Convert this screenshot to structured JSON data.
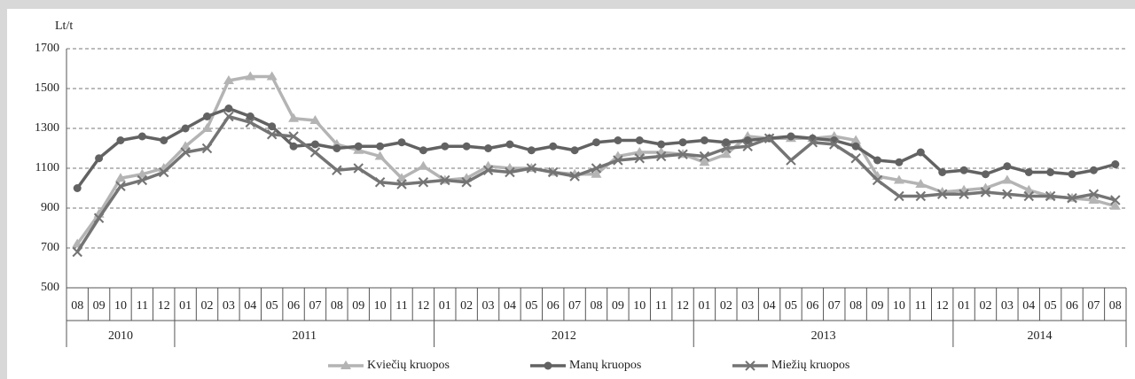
{
  "chart_data": {
    "type": "line",
    "y_label": "Lt/t",
    "categories": [
      "08",
      "09",
      "10",
      "11",
      "12",
      "01",
      "02",
      "03",
      "04",
      "05",
      "06",
      "07",
      "08",
      "09",
      "10",
      "11",
      "12",
      "01",
      "02",
      "03",
      "04",
      "05",
      "06",
      "07",
      "08",
      "09",
      "10",
      "11",
      "12",
      "01",
      "02",
      "03",
      "04",
      "05",
      "06",
      "07",
      "08",
      "09",
      "10",
      "11",
      "12",
      "01",
      "02",
      "03",
      "04",
      "05",
      "06",
      "07",
      "08"
    ],
    "years": [
      "2010",
      "2011",
      "2012",
      "2013",
      "2014"
    ],
    "ylim": [
      500,
      1700
    ],
    "yticks": [
      500,
      700,
      900,
      1100,
      1300,
      1500,
      1700
    ],
    "grid": true,
    "legend": "bottom",
    "series": [
      {
        "name": "Kviečių kruopos",
        "color": "#b4b4b4",
        "marker": "triangle",
        "values": [
          720,
          870,
          1050,
          1070,
          1100,
          1210,
          1300,
          1540,
          1560,
          1560,
          1350,
          1340,
          1220,
          1190,
          1160,
          1050,
          1110,
          1040,
          1050,
          1110,
          1100,
          1100,
          1080,
          1070,
          1070,
          1160,
          1180,
          1180,
          1170,
          1130,
          1170,
          1260,
          1250,
          1250,
          1250,
          1260,
          1240,
          1060,
          1040,
          1020,
          980,
          990,
          1000,
          1040,
          990,
          960,
          950,
          940,
          910
        ]
      },
      {
        "name": "Manų  kruopos",
        "color": "#626262",
        "marker": "circle",
        "values": [
          1000,
          1150,
          1240,
          1260,
          1240,
          1300,
          1360,
          1400,
          1360,
          1310,
          1210,
          1220,
          1200,
          1210,
          1210,
          1230,
          1190,
          1210,
          1210,
          1200,
          1220,
          1190,
          1210,
          1190,
          1230,
          1240,
          1240,
          1220,
          1230,
          1240,
          1230,
          1240,
          1250,
          1260,
          1250,
          1240,
          1210,
          1140,
          1130,
          1180,
          1080,
          1090,
          1070,
          1110,
          1080,
          1080,
          1070,
          1090,
          1120
        ]
      },
      {
        "name": "Miežių  kruopos",
        "color": "#747474",
        "marker": "cross",
        "values": [
          680,
          850,
          1010,
          1040,
          1080,
          1180,
          1200,
          1360,
          1330,
          1270,
          1260,
          1180,
          1090,
          1100,
          1030,
          1020,
          1030,
          1040,
          1030,
          1090,
          1080,
          1100,
          1080,
          1060,
          1100,
          1140,
          1150,
          1160,
          1170,
          1160,
          1200,
          1210,
          1250,
          1140,
          1230,
          1220,
          1150,
          1040,
          960,
          960,
          970,
          970,
          980,
          970,
          960,
          960,
          950,
          970,
          940
        ]
      }
    ]
  }
}
